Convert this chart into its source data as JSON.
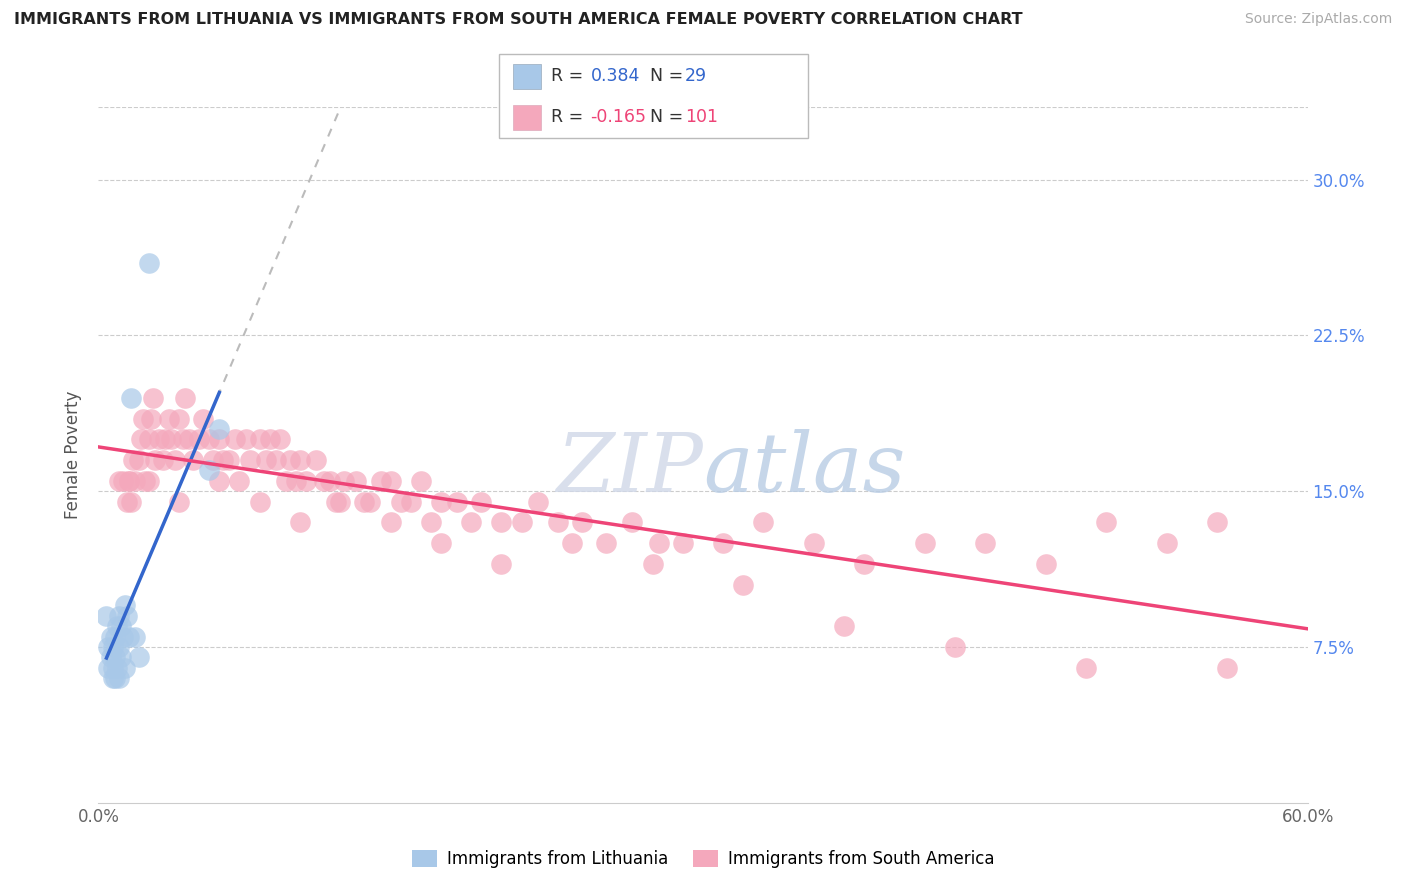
{
  "title": "IMMIGRANTS FROM LITHUANIA VS IMMIGRANTS FROM SOUTH AMERICA FEMALE POVERTY CORRELATION CHART",
  "source": "Source: ZipAtlas.com",
  "ylabel": "Female Poverty",
  "y_ticks_labels": [
    "7.5%",
    "15.0%",
    "22.5%",
    "30.0%"
  ],
  "y_tick_vals": [
    0.075,
    0.15,
    0.225,
    0.3
  ],
  "xlim": [
    0.0,
    0.6
  ],
  "ylim": [
    0.0,
    0.335
  ],
  "legend_blue_label": "Immigrants from Lithuania",
  "legend_pink_label": "Immigrants from South America",
  "R_blue": 0.384,
  "N_blue": 29,
  "R_pink": -0.165,
  "N_pink": 101,
  "blue_color": "#A8C8E8",
  "pink_color": "#F4A8BC",
  "trendline_blue": "#3366CC",
  "trendline_pink": "#EE4477",
  "blue_x": [
    0.004,
    0.005,
    0.005,
    0.006,
    0.006,
    0.007,
    0.007,
    0.007,
    0.008,
    0.008,
    0.008,
    0.009,
    0.009,
    0.01,
    0.01,
    0.01,
    0.011,
    0.011,
    0.012,
    0.013,
    0.013,
    0.014,
    0.015,
    0.016,
    0.018,
    0.02,
    0.025,
    0.055,
    0.06
  ],
  "blue_y": [
    0.09,
    0.075,
    0.065,
    0.08,
    0.07,
    0.075,
    0.065,
    0.06,
    0.08,
    0.07,
    0.06,
    0.085,
    0.065,
    0.09,
    0.075,
    0.06,
    0.085,
    0.07,
    0.08,
    0.095,
    0.065,
    0.09,
    0.08,
    0.195,
    0.08,
    0.07,
    0.26,
    0.16,
    0.18
  ],
  "pink_x": [
    0.01,
    0.012,
    0.014,
    0.015,
    0.016,
    0.017,
    0.018,
    0.02,
    0.021,
    0.022,
    0.023,
    0.025,
    0.026,
    0.027,
    0.028,
    0.03,
    0.032,
    0.033,
    0.035,
    0.036,
    0.038,
    0.04,
    0.042,
    0.043,
    0.045,
    0.047,
    0.05,
    0.052,
    0.055,
    0.057,
    0.06,
    0.062,
    0.065,
    0.068,
    0.07,
    0.073,
    0.075,
    0.08,
    0.083,
    0.085,
    0.088,
    0.09,
    0.093,
    0.095,
    0.098,
    0.1,
    0.103,
    0.108,
    0.112,
    0.115,
    0.118,
    0.122,
    0.128,
    0.132,
    0.135,
    0.14,
    0.145,
    0.15,
    0.155,
    0.16,
    0.165,
    0.17,
    0.178,
    0.185,
    0.19,
    0.2,
    0.21,
    0.218,
    0.228,
    0.24,
    0.252,
    0.265,
    0.278,
    0.29,
    0.31,
    0.33,
    0.355,
    0.38,
    0.41,
    0.44,
    0.47,
    0.5,
    0.53,
    0.555,
    0.015,
    0.025,
    0.04,
    0.06,
    0.08,
    0.1,
    0.12,
    0.145,
    0.17,
    0.2,
    0.235,
    0.275,
    0.32,
    0.37,
    0.425,
    0.49,
    0.56
  ],
  "pink_y": [
    0.155,
    0.155,
    0.145,
    0.155,
    0.145,
    0.165,
    0.155,
    0.165,
    0.175,
    0.185,
    0.155,
    0.175,
    0.185,
    0.195,
    0.165,
    0.175,
    0.165,
    0.175,
    0.185,
    0.175,
    0.165,
    0.185,
    0.175,
    0.195,
    0.175,
    0.165,
    0.175,
    0.185,
    0.175,
    0.165,
    0.175,
    0.165,
    0.165,
    0.175,
    0.155,
    0.175,
    0.165,
    0.175,
    0.165,
    0.175,
    0.165,
    0.175,
    0.155,
    0.165,
    0.155,
    0.165,
    0.155,
    0.165,
    0.155,
    0.155,
    0.145,
    0.155,
    0.155,
    0.145,
    0.145,
    0.155,
    0.155,
    0.145,
    0.145,
    0.155,
    0.135,
    0.145,
    0.145,
    0.135,
    0.145,
    0.135,
    0.135,
    0.145,
    0.135,
    0.135,
    0.125,
    0.135,
    0.125,
    0.125,
    0.125,
    0.135,
    0.125,
    0.115,
    0.125,
    0.125,
    0.115,
    0.135,
    0.125,
    0.135,
    0.155,
    0.155,
    0.145,
    0.155,
    0.145,
    0.135,
    0.145,
    0.135,
    0.125,
    0.115,
    0.125,
    0.115,
    0.105,
    0.085,
    0.075,
    0.065,
    0.065
  ]
}
